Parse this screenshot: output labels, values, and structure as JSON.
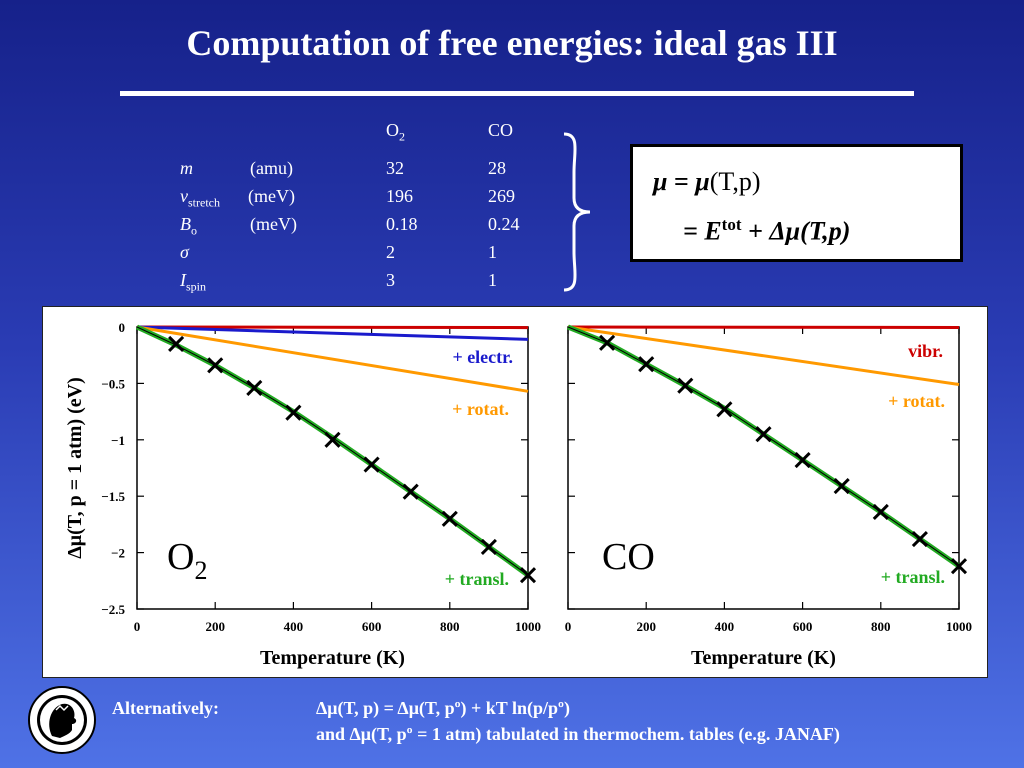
{
  "slide": {
    "title": "Computation of free energies: ideal gas III",
    "params": {
      "col_headers": [
        "O",
        "CO"
      ],
      "col_header_sub": [
        "2",
        ""
      ],
      "rows": [
        {
          "sym": "m",
          "sub": "",
          "unit": "(amu)",
          "o2": "32",
          "co": "28"
        },
        {
          "sym": "ν",
          "sub": "stretch",
          "unit": "(meV)",
          "o2": "196",
          "co": "269"
        },
        {
          "sym": "B",
          "sub": "o",
          "unit": "(meV)",
          "o2": "0.18",
          "co": "0.24"
        },
        {
          "sym": "σ",
          "sub": "",
          "unit": "",
          "o2": "2",
          "co": "1"
        },
        {
          "sym": "I",
          "sub": "spin",
          "unit": "",
          "o2": "3",
          "co": "1"
        }
      ]
    },
    "equation_box": {
      "line1": {
        "mu": "μ",
        "eq": " = ",
        "mu2": "μ",
        "args": "(T,p)"
      },
      "line2": {
        "eq": "= E",
        "sup": "tot",
        "rest": " + Δμ(T,p)"
      }
    },
    "bottom": {
      "label": "Alternatively:",
      "line1": "Δμ(T, p) = Δμ(T, pº) + kT ln(p/pº)",
      "line2": "and Δμ(T, pº = 1 atm) tabulated in thermochem. tables (e.g. JANAF)"
    }
  },
  "chart_data": [
    {
      "type": "line",
      "molecule": "O",
      "molecule_sub": "2",
      "xlabel": "Temperature  (K)",
      "ylabel": "Δμ(T, p = 1 atm)  (eV)",
      "xlim": [
        0,
        1000
      ],
      "ylim": [
        -2.5,
        0
      ],
      "xticks": [
        0,
        200,
        400,
        600,
        800,
        1000
      ],
      "yticks": [
        0,
        -0.5,
        -1,
        -1.5,
        -2,
        -2.5
      ],
      "ytick_labels": [
        "0",
        "−0.5",
        "−1",
        "−1.5",
        "−2",
        "−2.5"
      ],
      "series": [
        {
          "name": "vibr.",
          "color": "#cc0000",
          "x": [
            0,
            1000
          ],
          "y": [
            0,
            -0.005
          ],
          "labelled": false
        },
        {
          "name": "+ electr.",
          "color": "#1a1acc",
          "x": [
            0,
            1000
          ],
          "y": [
            0,
            -0.11
          ],
          "labelled": true
        },
        {
          "name": "+ rotat.",
          "color": "#ff9900",
          "x": [
            0,
            1000
          ],
          "y": [
            0,
            -0.57
          ],
          "labelled": true
        },
        {
          "name": "+ transl.",
          "color": "#22aa22",
          "x": [
            0,
            100,
            200,
            300,
            400,
            500,
            600,
            700,
            800,
            900,
            1000
          ],
          "y": [
            0,
            -0.16,
            -0.34,
            -0.54,
            -0.75,
            -0.98,
            -1.22,
            -1.46,
            -1.7,
            -1.95,
            -2.2
          ],
          "labelled": true
        }
      ],
      "markers": {
        "name": "tabulated",
        "x": [
          100,
          200,
          300,
          400,
          500,
          600,
          700,
          800,
          900,
          1000
        ],
        "y": [
          -0.15,
          -0.34,
          -0.54,
          -0.76,
          -1.0,
          -1.22,
          -1.46,
          -1.7,
          -1.95,
          -2.2
        ]
      }
    },
    {
      "type": "line",
      "molecule": "CO",
      "molecule_sub": "",
      "xlabel": "Temperature  (K)",
      "ylabel": "",
      "xlim": [
        0,
        1000
      ],
      "ylim": [
        -2.5,
        0
      ],
      "xticks": [
        0,
        200,
        400,
        600,
        800,
        1000
      ],
      "yticks": [
        0,
        -0.5,
        -1,
        -1.5,
        -2,
        -2.5
      ],
      "ytick_labels": [],
      "series": [
        {
          "name": "vibr.",
          "color": "#cc0000",
          "x": [
            0,
            1000
          ],
          "y": [
            0,
            -0.004
          ],
          "labelled": true
        },
        {
          "name": "+ rotat.",
          "color": "#ff9900",
          "x": [
            0,
            1000
          ],
          "y": [
            0,
            -0.51
          ],
          "labelled": true
        },
        {
          "name": "+ transl.",
          "color": "#22aa22",
          "x": [
            0,
            100,
            200,
            300,
            400,
            500,
            600,
            700,
            800,
            900,
            1000
          ],
          "y": [
            0,
            -0.14,
            -0.33,
            -0.52,
            -0.72,
            -0.95,
            -1.18,
            -1.41,
            -1.64,
            -1.88,
            -2.12
          ],
          "labelled": true
        }
      ],
      "markers": {
        "name": "tabulated",
        "x": [
          100,
          200,
          300,
          400,
          500,
          600,
          700,
          800,
          900,
          1000
        ],
        "y": [
          -0.14,
          -0.33,
          -0.52,
          -0.73,
          -0.95,
          -1.18,
          -1.41,
          -1.64,
          -1.88,
          -2.12
        ]
      }
    }
  ]
}
